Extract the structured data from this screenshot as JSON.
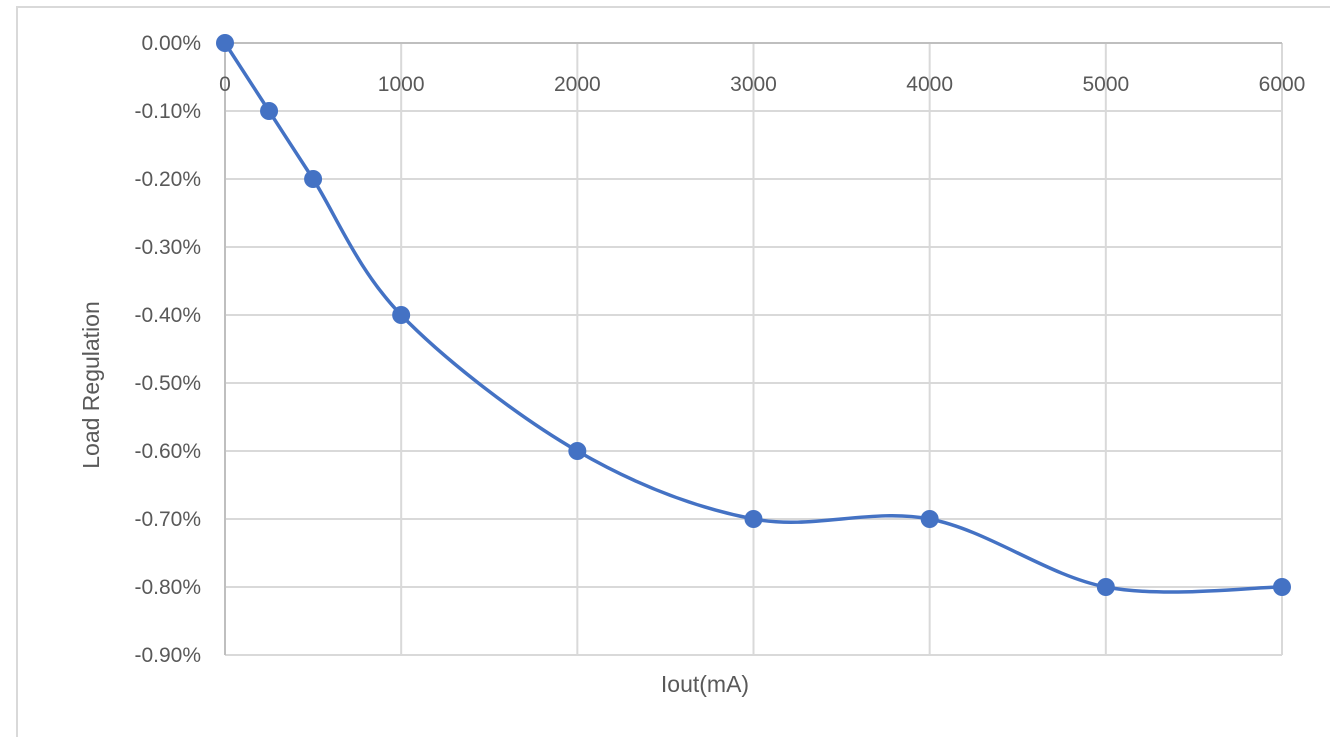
{
  "chart_data": {
    "type": "scatter",
    "mode": "smooth-line-with-markers",
    "title": "",
    "xlabel": "Iout(mA)",
    "ylabel": "Load Regulation",
    "xlim": [
      0,
      6000
    ],
    "ylim": [
      -0.9,
      0.0
    ],
    "x_ticks": [
      0,
      1000,
      2000,
      3000,
      4000,
      5000,
      6000
    ],
    "x_tick_labels": [
      "0",
      "1000",
      "2000",
      "3000",
      "4000",
      "5000",
      "6000"
    ],
    "y_ticks": [
      0.0,
      -0.1,
      -0.2,
      -0.3,
      -0.4,
      -0.5,
      -0.6,
      -0.7,
      -0.8,
      -0.9
    ],
    "y_tick_labels": [
      "0.00%",
      "-0.10%",
      "-0.20%",
      "-0.30%",
      "-0.40%",
      "-0.50%",
      "-0.60%",
      "-0.70%",
      "-0.80%",
      "-0.90%"
    ],
    "x_axis_position": "top",
    "grid": true,
    "legend": "none",
    "series": [
      {
        "color": "#4472c4",
        "x": [
          0,
          250,
          500,
          1000,
          2000,
          3000,
          4000,
          5000,
          6000
        ],
        "y": [
          0.0,
          -0.1,
          -0.2,
          -0.4,
          -0.6,
          -0.7,
          -0.7,
          -0.8,
          -0.8
        ]
      }
    ]
  }
}
